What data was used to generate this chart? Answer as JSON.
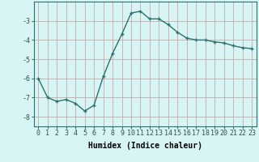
{
  "x": [
    0,
    1,
    2,
    3,
    4,
    5,
    6,
    7,
    8,
    9,
    10,
    11,
    12,
    13,
    14,
    15,
    16,
    17,
    18,
    19,
    20,
    21,
    22,
    23
  ],
  "y": [
    -6.0,
    -7.0,
    -7.2,
    -7.1,
    -7.3,
    -7.7,
    -7.4,
    -5.9,
    -4.7,
    -3.7,
    -2.6,
    -2.5,
    -2.9,
    -2.9,
    -3.2,
    -3.6,
    -3.9,
    -4.0,
    -4.0,
    -4.1,
    -4.15,
    -4.3,
    -4.4,
    -4.45
  ],
  "line_color": "#2d7070",
  "marker": "+",
  "marker_size": 3,
  "bg_color": "#d8f5f5",
  "grid_color": "#c8a8a8",
  "xlabel": "Humidex (Indice chaleur)",
  "xlim": [
    -0.5,
    23.5
  ],
  "ylim": [
    -8.5,
    -2.0
  ],
  "xticks": [
    0,
    1,
    2,
    3,
    4,
    5,
    6,
    7,
    8,
    9,
    10,
    11,
    12,
    13,
    14,
    15,
    16,
    17,
    18,
    19,
    20,
    21,
    22,
    23
  ],
  "yticks": [
    -8,
    -7,
    -6,
    -5,
    -4,
    -3
  ],
  "xlabel_fontsize": 7,
  "tick_fontsize": 6,
  "line_width": 1.0
}
